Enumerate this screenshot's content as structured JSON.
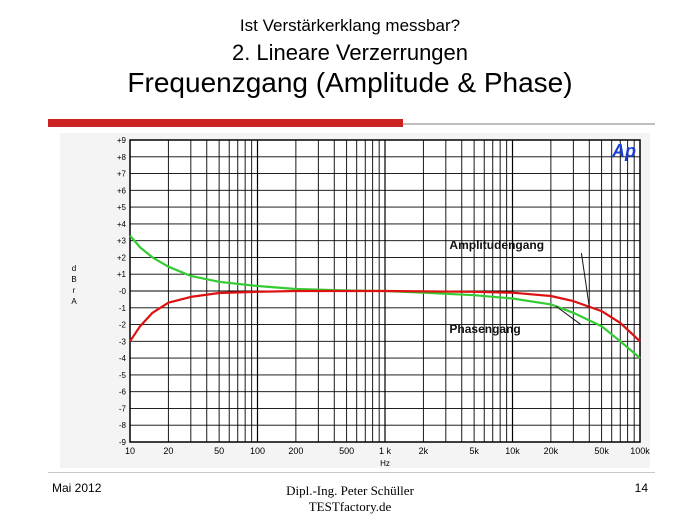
{
  "slide": {
    "title_line1": "Ist Verstärkerklang messbar?",
    "title_line2": "2. Lineare Verzerrungen",
    "title_line3": "Frequenzgang   (Amplitude & Phase)",
    "footer_date": "Mai 2012",
    "footer_author": "Dipl.-Ing. Peter Schüller",
    "footer_company": "TESTfactory.de",
    "page_number": "14"
  },
  "chart_data": {
    "type": "line",
    "x_scale": "log",
    "xlim": [
      10,
      100000
    ],
    "ylim": [
      -9,
      9
    ],
    "xlabel": "Hz",
    "ylabel": "dBr A",
    "x_ticks": [
      {
        "v": 10,
        "label": "10"
      },
      {
        "v": 20,
        "label": "20"
      },
      {
        "v": 50,
        "label": "50"
      },
      {
        "v": 100,
        "label": "100"
      },
      {
        "v": 200,
        "label": "200"
      },
      {
        "v": 500,
        "label": "500"
      },
      {
        "v": 1000,
        "label": "1 k"
      },
      {
        "v": 2000,
        "label": "2k"
      },
      {
        "v": 5000,
        "label": "5k"
      },
      {
        "v": 10000,
        "label": "10k"
      },
      {
        "v": 20000,
        "label": "20k"
      },
      {
        "v": 50000,
        "label": "50k"
      },
      {
        "v": 100000,
        "label": "100k"
      }
    ],
    "y_tick_labels": [
      "+9",
      "+8",
      "+7",
      "+6",
      "+5",
      "+4",
      "+3",
      "+2",
      "+1",
      "-0",
      "-1",
      "-2",
      "-3",
      "-4",
      "-5",
      "-6",
      "-7",
      "-8",
      "-9"
    ],
    "grid": true,
    "logo": "Ap",
    "series": [
      {
        "name": "Amplitudengang",
        "color": "#dd1111",
        "points": [
          [
            10,
            -3.0
          ],
          [
            12,
            -2.1
          ],
          [
            15,
            -1.3
          ],
          [
            20,
            -0.7
          ],
          [
            30,
            -0.35
          ],
          [
            50,
            -0.12
          ],
          [
            100,
            -0.05
          ],
          [
            200,
            0.0
          ],
          [
            1000,
            0.0
          ],
          [
            5000,
            -0.05
          ],
          [
            10000,
            -0.1
          ],
          [
            20000,
            -0.3
          ],
          [
            30000,
            -0.6
          ],
          [
            50000,
            -1.2
          ],
          [
            70000,
            -1.9
          ],
          [
            100000,
            -3.0
          ]
        ]
      },
      {
        "name": "Phasengang",
        "color": "#33cc33",
        "points": [
          [
            10,
            3.3
          ],
          [
            12,
            2.6
          ],
          [
            15,
            2.0
          ],
          [
            20,
            1.45
          ],
          [
            30,
            0.9
          ],
          [
            50,
            0.55
          ],
          [
            100,
            0.3
          ],
          [
            200,
            0.12
          ],
          [
            500,
            0.03
          ],
          [
            1000,
            0.0
          ],
          [
            2000,
            -0.1
          ],
          [
            5000,
            -0.25
          ],
          [
            10000,
            -0.45
          ],
          [
            20000,
            -0.8
          ],
          [
            30000,
            -1.3
          ],
          [
            50000,
            -2.1
          ],
          [
            70000,
            -3.0
          ],
          [
            100000,
            -4.0
          ]
        ]
      }
    ],
    "annotations": [
      {
        "text": "Amplitudengang",
        "series": 0,
        "at_x": 40000,
        "label_x": 3200,
        "label_y": 2.5
      },
      {
        "text": "Phasengang",
        "series": 1,
        "at_x": 22000,
        "label_x": 3200,
        "label_y": -2.5
      }
    ]
  }
}
